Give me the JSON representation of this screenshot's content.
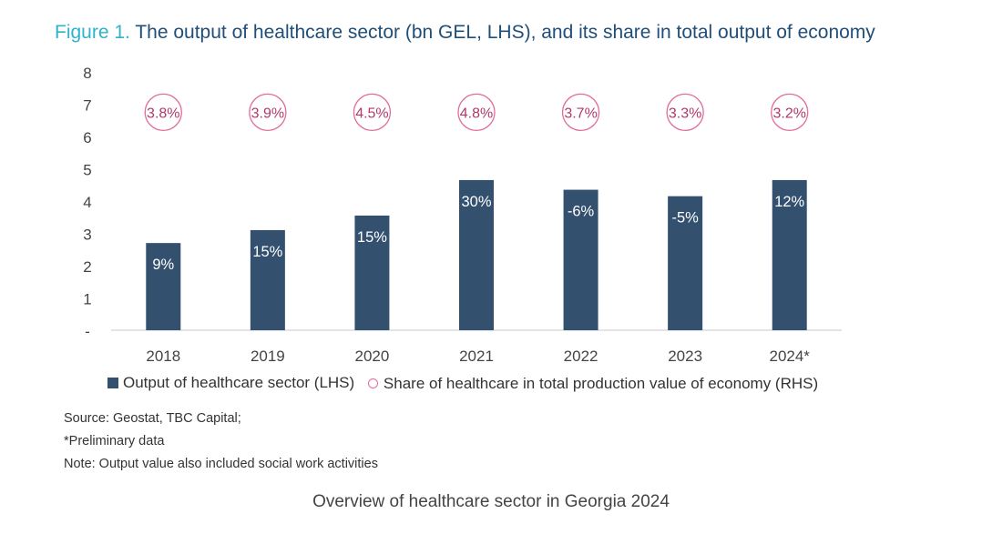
{
  "title": {
    "prefix": "Figure 1.",
    "text": "The output of healthcare sector (bn GEL, LHS), and its share in total output of economy"
  },
  "chart_data": {
    "type": "bar",
    "categories": [
      "2018",
      "2019",
      "2020",
      "2021",
      "2022",
      "2023",
      "2024*"
    ],
    "series": [
      {
        "name": "Output of healthcare sector (LHS)",
        "values": [
          2.7,
          3.1,
          3.55,
          4.65,
          4.35,
          4.15,
          4.65
        ],
        "data_labels": [
          "9%",
          "15%",
          "15%",
          "30%",
          "-6%",
          "-5%",
          "12%"
        ],
        "color": "#34506f"
      },
      {
        "name": "Share of healthcare in total production value of economy (RHS)",
        "type": "scatter",
        "data_labels": [
          "3.8%",
          "3.9%",
          "4.5%",
          "4.8%",
          "3.7%",
          "3.3%",
          "3.2%"
        ],
        "marker_color": "#e26c9b"
      }
    ],
    "yticks": [
      "-",
      "1",
      "2",
      "3",
      "4",
      "5",
      "6",
      "7",
      "8"
    ],
    "ylim": [
      0,
      8
    ],
    "grid": false,
    "legend_position": "bottom"
  },
  "notes": [
    "Source: Geostat, TBC Capital;",
    "*Preliminary data",
    "Note: Output value also included social work activities"
  ],
  "caption": "Overview of healthcare sector in Georgia 2024"
}
